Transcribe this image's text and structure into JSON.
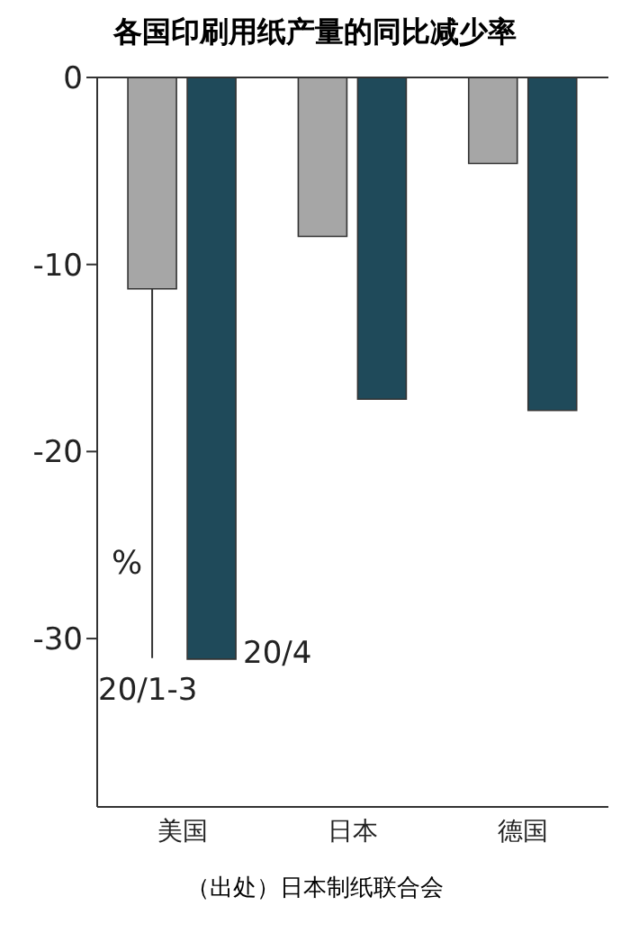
{
  "chart_data": {
    "type": "bar",
    "title": "各国印刷用纸产量的同比减少率",
    "categories": [
      "美国",
      "日本",
      "德国"
    ],
    "series": [
      {
        "name": "20/1-3",
        "color": "#a6a6a6",
        "values": [
          -11.3,
          -8.5,
          -4.6
        ]
      },
      {
        "name": "20/4",
        "color": "#1f4a5a",
        "values": [
          -31.1,
          -17.2,
          -17.8
        ]
      }
    ],
    "ylabel": "%",
    "ylim": [
      -39,
      0
    ],
    "yticks": [
      0,
      -10,
      -20,
      -30
    ],
    "grid": false,
    "legend": false,
    "annotations": [
      "（出处）日本制纸联合会"
    ]
  }
}
